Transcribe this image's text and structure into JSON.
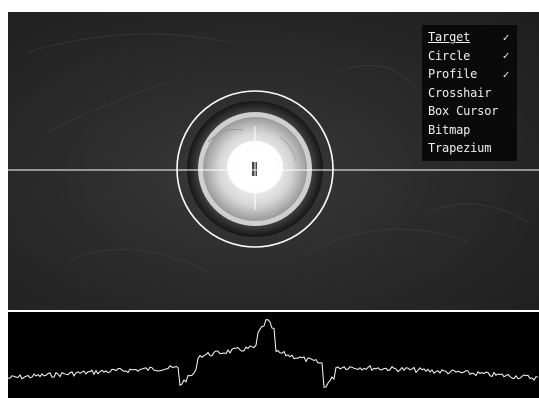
{
  "overlay_menu": {
    "items": [
      {
        "label": "Target",
        "checked": true,
        "selected": true
      },
      {
        "label": "Circle",
        "checked": true,
        "selected": false
      },
      {
        "label": "Profile",
        "checked": true,
        "selected": false
      },
      {
        "label": "Crosshair",
        "checked": false,
        "selected": false
      },
      {
        "label": "Box Cursor",
        "checked": false,
        "selected": false
      },
      {
        "label": "Bitmap",
        "checked": false,
        "selected": false
      },
      {
        "label": "Trapezium",
        "checked": false,
        "selected": false
      }
    ],
    "check_glyph": "✓"
  },
  "colors": {
    "overlay_line": "#ffffff",
    "profile_trace": "#ffffff",
    "menu_background": "#0a0a0a"
  }
}
